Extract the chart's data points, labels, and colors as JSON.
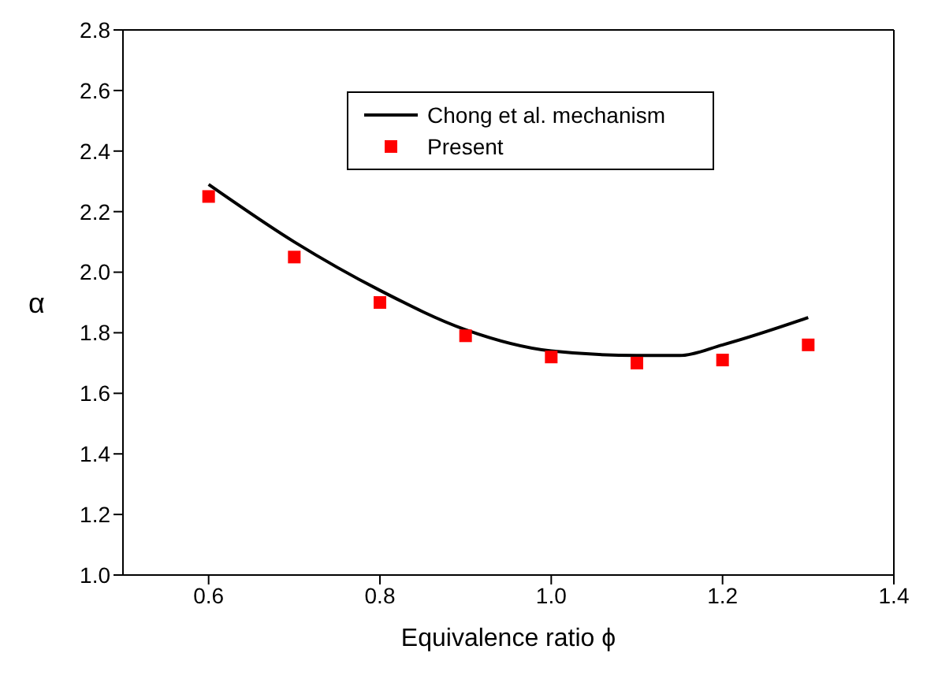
{
  "chart_data": {
    "type": "scatter",
    "xlabel": "Equivalence ratio ϕ",
    "ylabel": "α",
    "xlim": [
      0.5,
      1.4
    ],
    "xticks": [
      0.6,
      0.8,
      {
        "value": 1,
        "label": "1.0"
      },
      1.2,
      1.4
    ],
    "ylim": [
      1,
      2.8
    ],
    "yticks": [
      {
        "value": 1,
        "label": "1.0"
      },
      1.2,
      1.4,
      1.6,
      1.8,
      {
        "value": 2,
        "label": "2.0"
      },
      2.2,
      2.4,
      2.6,
      2.8
    ],
    "legend": "top right",
    "grid": false,
    "series": [
      {
        "name": "Chong et al. mechanism",
        "type": "line",
        "color": "#000000",
        "marker": "none",
        "line_style": "solid",
        "x": [
          0.6,
          0.7,
          0.8,
          0.9,
          1.0,
          1.1,
          1.15,
          1.2,
          1.3
        ],
        "values": [
          2.29,
          2.1,
          1.94,
          1.81,
          1.74,
          1.725,
          1.725,
          1.76,
          1.85
        ]
      },
      {
        "name": "Present",
        "color": "#ff0000",
        "marker": "square",
        "x": [
          0.6,
          0.7,
          0.8,
          0.9,
          1.0,
          1.1,
          1.2,
          1.3
        ],
        "values": [
          2.25,
          2.05,
          1.9,
          1.79,
          1.72,
          1.7,
          1.71,
          1.76
        ]
      }
    ]
  }
}
